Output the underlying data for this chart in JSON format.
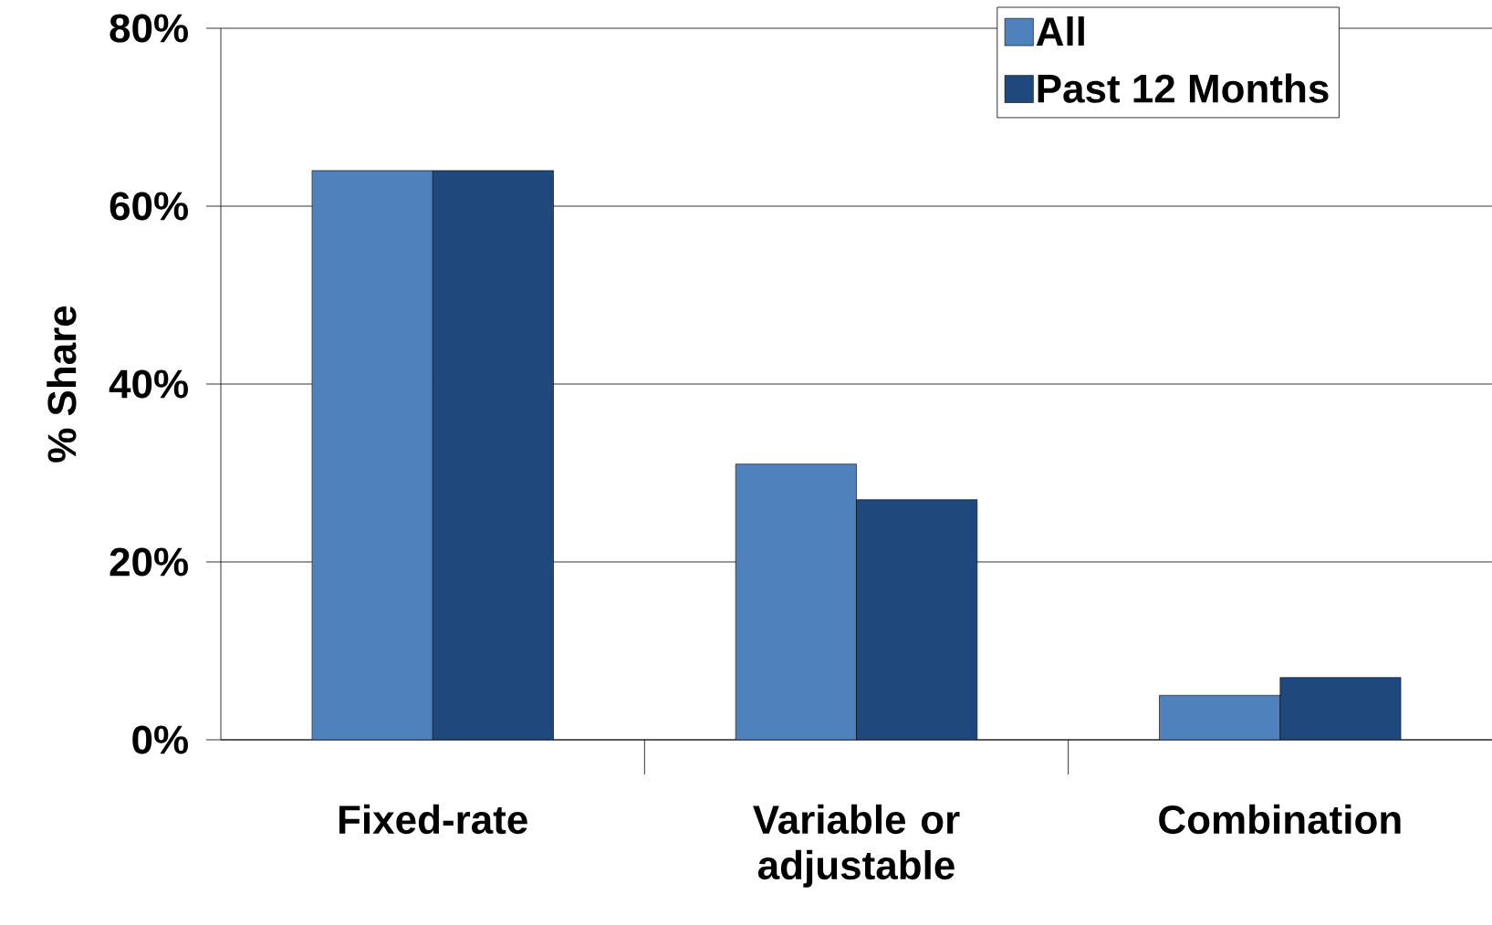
{
  "chart_data": {
    "type": "bar",
    "ylabel": "% Share",
    "categories": [
      "Fixed-rate",
      "Variable or adjustable",
      "Combination"
    ],
    "series": [
      {
        "name": "All",
        "color": "#4f81bd",
        "values": [
          64,
          31,
          5
        ]
      },
      {
        "name": "Past 12 Months",
        "color": "#1f497d",
        "values": [
          64,
          27,
          7
        ]
      }
    ],
    "ylim": [
      0,
      80
    ],
    "yticks": [
      {
        "value": 0,
        "label": "0%"
      },
      {
        "value": 20,
        "label": "20%"
      },
      {
        "value": 40,
        "label": "40%"
      },
      {
        "value": 60,
        "label": "60%"
      },
      {
        "value": 80,
        "label": "80%"
      }
    ],
    "grid": "y",
    "legend": "top right"
  }
}
